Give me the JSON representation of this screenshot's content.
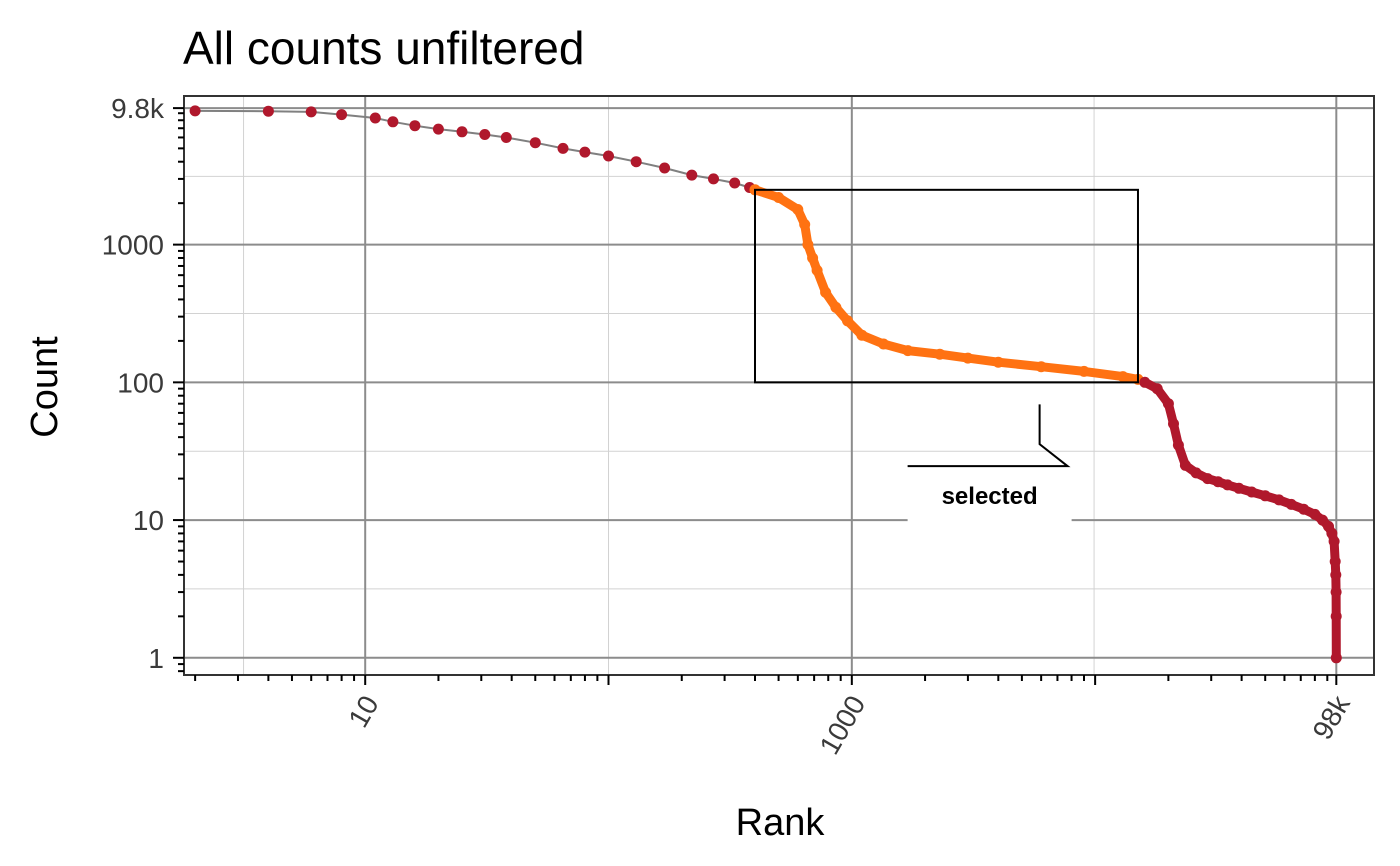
{
  "chart_data": {
    "type": "scatter",
    "title": "All counts unfiltered",
    "xlabel": "Rank",
    "ylabel": "Count",
    "x_scale": "log",
    "y_scale": "log",
    "xlim": [
      1.8,
      140000
    ],
    "ylim": [
      0.75,
      12000
    ],
    "x_ticks": [
      10,
      1000,
      98000
    ],
    "x_tick_labels": [
      "10",
      "1000",
      "98k"
    ],
    "y_ticks": [
      1,
      10,
      100,
      1000,
      9800
    ],
    "y_tick_labels": [
      "1",
      "10",
      "100",
      "1000",
      "9.8k"
    ],
    "grid": true,
    "colors": {
      "unselected": "#b0182c",
      "selected": "#ff7212",
      "line": "#808080",
      "grid_major": "#8c8c8c",
      "grid_minor": "#d2d2d2"
    },
    "series": [
      {
        "points": [
          [
            2,
            9350
          ],
          [
            4,
            9300
          ],
          [
            6,
            9200
          ],
          [
            8,
            8800
          ],
          [
            11,
            8300
          ],
          [
            13,
            7800
          ],
          [
            16,
            7300
          ],
          [
            20,
            6900
          ],
          [
            25,
            6600
          ],
          [
            31,
            6300
          ],
          [
            38,
            6000
          ],
          [
            50,
            5500
          ],
          [
            65,
            5000
          ],
          [
            80,
            4700
          ],
          [
            100,
            4400
          ],
          [
            130,
            4000
          ],
          [
            170,
            3600
          ],
          [
            220,
            3200
          ],
          [
            270,
            3000
          ],
          [
            330,
            2800
          ],
          [
            380,
            2600
          ]
        ]
      },
      {
        "name": "selected",
        "points": [
          [
            400,
            2500
          ],
          [
            500,
            2200
          ],
          [
            600,
            1800
          ],
          [
            640,
            1400
          ],
          [
            660,
            1000
          ],
          [
            690,
            800
          ],
          [
            720,
            650
          ],
          [
            780,
            450
          ],
          [
            860,
            350
          ],
          [
            960,
            280
          ],
          [
            1100,
            220
          ],
          [
            1350,
            190
          ],
          [
            1700,
            170
          ],
          [
            2300,
            160
          ],
          [
            3000,
            150
          ],
          [
            4000,
            140
          ],
          [
            6000,
            130
          ],
          [
            9000,
            120
          ],
          [
            13000,
            110
          ],
          [
            15000,
            105
          ]
        ]
      },
      {
        "points": [
          [
            16000,
            100
          ],
          [
            18000,
            90
          ],
          [
            20000,
            70
          ],
          [
            21000,
            50
          ],
          [
            22000,
            35
          ],
          [
            23500,
            25
          ],
          [
            26000,
            22
          ],
          [
            29000,
            20
          ],
          [
            32000,
            19
          ],
          [
            35000,
            18
          ],
          [
            39000,
            17
          ],
          [
            44000,
            16
          ],
          [
            50000,
            15
          ],
          [
            57000,
            14
          ],
          [
            64000,
            13
          ],
          [
            72000,
            12
          ],
          [
            80000,
            11
          ],
          [
            86000,
            10
          ],
          [
            91000,
            9
          ],
          [
            94000,
            8
          ],
          [
            96000,
            7
          ],
          [
            97000,
            5
          ],
          [
            97500,
            4
          ],
          [
            97800,
            3
          ],
          [
            97900,
            2
          ],
          [
            98000,
            1
          ]
        ]
      }
    ],
    "selection_box": {
      "x": [
        400,
        15000
      ],
      "y": [
        100,
        2500
      ]
    },
    "annotation": {
      "label": "selected",
      "x": 6500,
      "y": 12
    }
  }
}
